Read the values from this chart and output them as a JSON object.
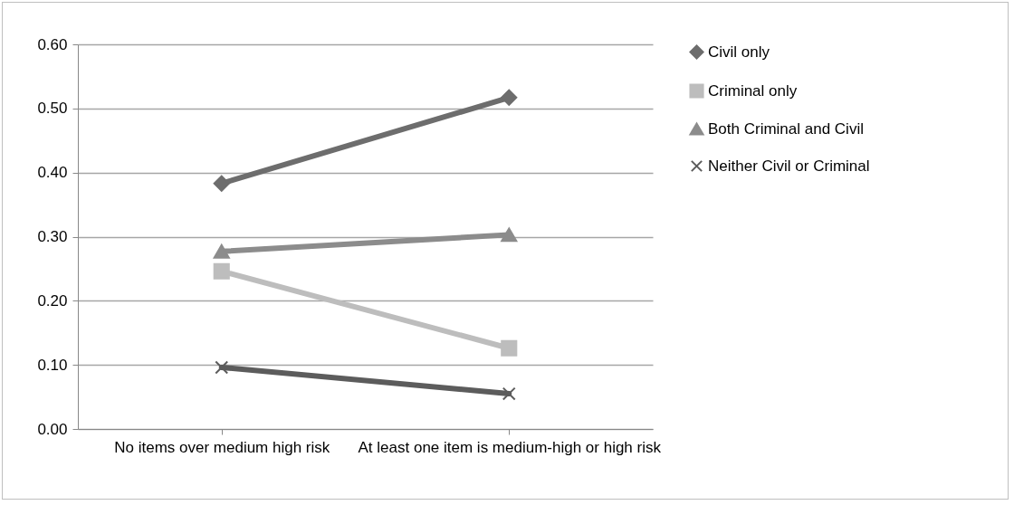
{
  "chart_data": {
    "type": "line",
    "categories": [
      "No items over medium high risk",
      "At least one item is medium-high or high risk"
    ],
    "series": [
      {
        "name": "Civil only",
        "color": "#6d6d6d",
        "marker": "diamond",
        "values": [
          0.383,
          0.517
        ]
      },
      {
        "name": "Criminal only",
        "color": "#bdbdbd",
        "marker": "square",
        "values": [
          0.246,
          0.126
        ]
      },
      {
        "name": "Both Criminal and Civil",
        "color": "#8c8c8c",
        "marker": "triangle",
        "values": [
          0.277,
          0.303
        ]
      },
      {
        "name": "Neither Civil or Criminal",
        "color": "#5c5c5c",
        "marker": "cross",
        "values": [
          0.096,
          0.055
        ]
      }
    ],
    "ylim": [
      0,
      0.6
    ],
    "yticks": [
      {
        "value": 0,
        "label": "0.00"
      },
      {
        "value": 0.1,
        "label": "0.10"
      },
      {
        "value": 0.2,
        "label": "0.20"
      },
      {
        "value": 0.3,
        "label": "0.30"
      },
      {
        "value": 0.4,
        "label": "0.40"
      },
      {
        "value": 0.5,
        "label": "0.50"
      },
      {
        "value": 0.6,
        "label": "0.60"
      }
    ],
    "grid": "y",
    "legend": "right",
    "line_style": "solid"
  }
}
